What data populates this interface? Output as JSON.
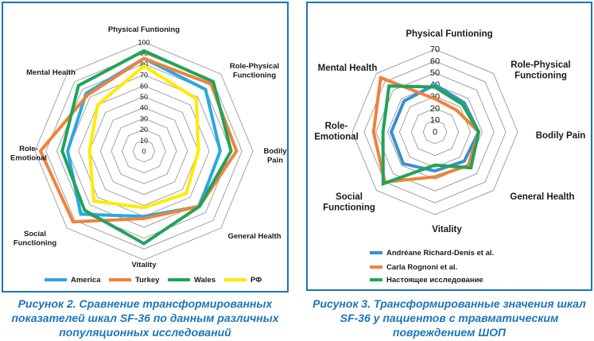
{
  "chart_data": [
    {
      "type": "radar",
      "caption": "Рисунок 2. Сравнение трансформированных показателей шкал SF-36 по данным различных популяционных исследований",
      "axes": [
        [
          "Physical Funtioning"
        ],
        [
          "Role-Physical",
          "Functioning"
        ],
        [
          "Bodily",
          "Pain"
        ],
        [
          "General Health"
        ],
        [
          "Vitality"
        ],
        [
          "Social",
          "Functioning"
        ],
        [
          "Role-",
          "Emotional"
        ],
        [
          "Mental Health"
        ]
      ],
      "r_range": [
        0,
        100
      ],
      "r_ticks": [
        0,
        10,
        20,
        30,
        40,
        50,
        60,
        70,
        80,
        90,
        100
      ],
      "series": [
        {
          "name": "America",
          "color": "#29a8e0",
          "values": [
            85,
            80,
            70,
            72,
            60,
            82,
            70,
            75
          ]
        },
        {
          "name": "Turkey",
          "color": "#f0823a",
          "values": [
            85,
            87,
            85,
            72,
            62,
            92,
            95,
            73
          ]
        },
        {
          "name": "Wales",
          "color": "#22a35a",
          "values": [
            92,
            90,
            80,
            72,
            85,
            77,
            75,
            85
          ]
        },
        {
          "name": "РФ",
          "color": "#ffea00",
          "values": [
            78,
            68,
            50,
            55,
            52,
            65,
            50,
            60
          ]
        }
      ],
      "legend_position": "bottom"
    },
    {
      "type": "radar",
      "caption": "Рисунок 3. Трансформированные значения шкал SF-36 у пациентов с травматическим повреждением ШОП",
      "axes": [
        [
          "Physical Funtioning"
        ],
        [
          "Role-Physical",
          "Functioning"
        ],
        [
          "Bodily Pain"
        ],
        [
          "General Health"
        ],
        [
          "Vitality"
        ],
        [
          "Social",
          "Functioning"
        ],
        [
          "Role-",
          "Emotional"
        ],
        [
          "Mental Health"
        ]
      ],
      "r_range": [
        0,
        70
      ],
      "r_ticks": [
        0,
        10,
        20,
        30,
        40,
        50,
        60,
        70
      ],
      "series": [
        {
          "name": "Andréane Richard-Denis et al.",
          "color": "#3b8fd0",
          "values": [
            40,
            35,
            37,
            35,
            33,
            38,
            37,
            37
          ]
        },
        {
          "name": "Carla Rognoni et al.",
          "color": "#f0823a",
          "values": [
            28,
            26,
            37,
            40,
            38,
            60,
            52,
            65
          ]
        },
        {
          "name": "Настоящее исследование",
          "color": "#22a35a",
          "values": [
            38,
            33,
            37,
            43,
            28,
            62,
            44,
            55
          ]
        }
      ],
      "legend_position": "bottom-left"
    }
  ]
}
